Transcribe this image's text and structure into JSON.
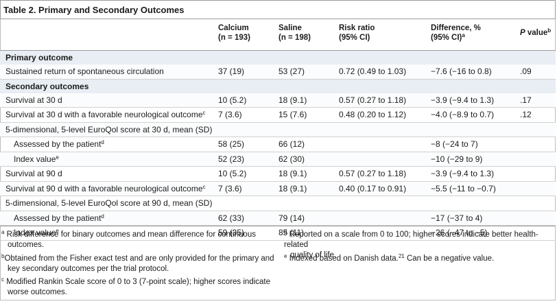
{
  "title": "Table 2. Primary and Secondary Outcomes",
  "headers": {
    "calcium": [
      "Calcium",
      "(n = 193)"
    ],
    "saline": [
      "Saline",
      "(n = 198)"
    ],
    "risk": [
      "Risk ratio",
      "(95% CI)"
    ],
    "diff": [
      "Difference, %",
      "(95% CI)"
    ],
    "diff_sup": "a",
    "p_label": "P",
    "p_rest": " value",
    "p_sup": "b"
  },
  "rows": [
    {
      "type": "section",
      "label": "Primary outcome"
    },
    {
      "type": "row",
      "label": "Sustained return of spontaneous circulation",
      "sup": "",
      "calcium": "37 (19)",
      "saline": "53 (27)",
      "risk": "0.72 (0.49 to 1.03)",
      "diff": "−7.6 (−16 to 0.8)",
      "p": ".09"
    },
    {
      "type": "section",
      "label": "Secondary outcomes"
    },
    {
      "type": "row",
      "label": "Survival at 30 d",
      "sup": "",
      "calcium": "10 (5.2)",
      "saline": "18 (9.1)",
      "risk": "0.57 (0.27 to 1.18)",
      "diff": "−3.9 (−9.4 to 1.3)",
      "p": ".17"
    },
    {
      "type": "row",
      "label": "Survival at 30 d with a favorable neurological outcome",
      "sup": "c",
      "calcium": "7 (3.6)",
      "saline": "15 (7.6)",
      "risk": "0.48 (0.20 to 1.12)",
      "diff": "−4.0 (−8.9 to 0.7)",
      "p": ".12"
    },
    {
      "type": "row",
      "label": "5-dimensional, 5-level EuroQol score at 30 d, mean (SD)",
      "sup": "",
      "calcium": "",
      "saline": "",
      "risk": "",
      "diff": "",
      "p": ""
    },
    {
      "type": "row",
      "indent": true,
      "label": "Assessed by the patient",
      "sup": "d",
      "calcium": "58 (25)",
      "saline": "66 (12)",
      "risk": "",
      "diff": "−8 (−24 to 7)",
      "p": ""
    },
    {
      "type": "row",
      "indent": true,
      "label": "Index value",
      "sup": "e",
      "calcium": "52 (23)",
      "saline": "62 (30)",
      "risk": "",
      "diff": "−10 (−29 to 9)",
      "p": ""
    },
    {
      "type": "row",
      "label": "Survival at 90 d",
      "sup": "",
      "calcium": "10 (5.2)",
      "saline": "18 (9.1)",
      "risk": "0.57 (0.27 to 1.18)",
      "diff": "−3.9 (−9.4 to 1.3)",
      "p": ""
    },
    {
      "type": "row",
      "label": "Survival at 90 d with a favorable neurological outcome",
      "sup": "c",
      "calcium": "7 (3.6)",
      "saline": "18 (9.1)",
      "risk": "0.40 (0.17 to 0.91)",
      "diff": "−5.5 (−11 to −0.7)",
      "p": ""
    },
    {
      "type": "row",
      "label": "5-dimensional, 5-level EuroQol score at 90 d, mean (SD)",
      "sup": "",
      "calcium": "",
      "saline": "",
      "risk": "",
      "diff": "",
      "p": ""
    },
    {
      "type": "row",
      "indent": true,
      "label": "Assessed by the patient",
      "sup": "d",
      "calcium": "62 (33)",
      "saline": "79 (14)",
      "risk": "",
      "diff": "−17 (−37 to 4)",
      "p": ""
    },
    {
      "type": "row",
      "indent": true,
      "label": "Index value",
      "sup": "e",
      "calcium": "59 (35)",
      "saline": "85 (11)",
      "risk": "",
      "diff": "−26 (−47 to −5)",
      "p": ""
    }
  ],
  "footnotes": {
    "a": {
      "mark": "a",
      "lines": [
        "Risk difference for binary outcomes and mean difference for continuous",
        "outcomes."
      ]
    },
    "b": {
      "mark": "b",
      "lines": [
        "Obtained from the Fisher exact test and are only provided for the primary and",
        "key secondary outcomes per the trial protocol."
      ]
    },
    "c": {
      "mark": "c",
      "lines": [
        "Modified Rankin Scale score of 0 to 3 (7-point scale); higher scores indicate",
        "worse outcomes."
      ]
    },
    "d": {
      "mark": "d",
      "lines": [
        "Reported on a scale from 0 to 100; higher scores indicate better health-related",
        "quality of life."
      ]
    },
    "e": {
      "mark": "e",
      "before": "Indexed based on Danish data.",
      "ref": "21",
      "after": " Can be a negative value."
    }
  },
  "colors": {
    "section_bg": "#e8eef3",
    "border": "#9a9a9a",
    "text": "#1a1a1a"
  }
}
